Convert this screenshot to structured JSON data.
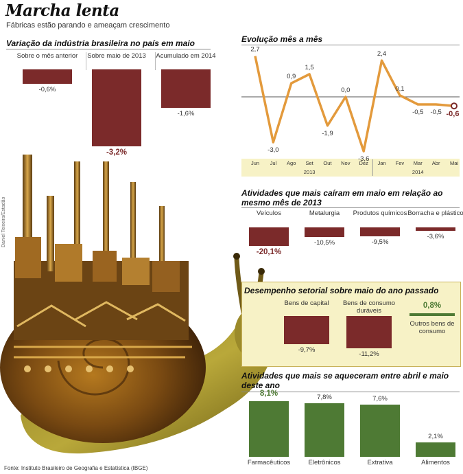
{
  "header": {
    "title": "Marcha lenta",
    "subtitle": "Fábricas estão parando e ameaçam crescimento"
  },
  "source": "Fonte: Instituto Brasileiro de Geografia e Estatística (IBGE)",
  "credit": "Daniel Teixeira/Estadão",
  "colors": {
    "maroon": "#7b2a2a",
    "green": "#4e7a34",
    "orange": "#e39a3c",
    "yellow_panel": "#f7f2c6"
  },
  "chart_data": [
    {
      "type": "bar",
      "title": "Variação da indústria brasileira no país em maio",
      "categories": [
        "Sobre o mês anterior",
        "Sobre maio de 2013",
        "Acumulado em 2014"
      ],
      "values": [
        -0.6,
        -3.2,
        -1.6
      ],
      "value_labels": [
        "-0,6%",
        "-3,2%",
        "-1,6%"
      ],
      "highlight": "Sobre maio de 2013"
    },
    {
      "type": "line",
      "title": "Evolução mês a mês",
      "x": [
        "Jun",
        "Jul",
        "Ago",
        "Set",
        "Out",
        "Nov",
        "Dez",
        "Jan",
        "Fev",
        "Mar",
        "Abr",
        "Mai"
      ],
      "values": [
        2.7,
        -3.0,
        0.9,
        1.5,
        -1.9,
        0.0,
        -3.6,
        2.4,
        0.1,
        -0.5,
        -0.5,
        -0.6
      ],
      "value_labels": [
        "2,7",
        "-3,0",
        "0,9",
        "1,5",
        "-1,9",
        "0,0",
        "-3,6",
        "2,4",
        "0,1",
        "-0,5",
        "-0,5",
        "-0,6"
      ],
      "year_labels": [
        "2013",
        "2014"
      ],
      "ylim": [
        -4,
        3
      ]
    },
    {
      "type": "bar",
      "title": "Atividades que mais caíram em maio em relação ao mesmo mês de 2013",
      "categories": [
        "Veículos",
        "Metalurgia",
        "Produtos químicos",
        "Borracha e plástico"
      ],
      "values": [
        -20.1,
        -10.5,
        -9.5,
        -3.6
      ],
      "value_labels": [
        "-20,1%",
        "-10,5%",
        "-9,5%",
        "-3,6%"
      ]
    },
    {
      "type": "bar",
      "title": "Desempenho setorial sobre maio do ano passado",
      "categories": [
        "Bens de capital",
        "Bens de consumo duráveis",
        "Outros bens de consumo"
      ],
      "values": [
        -9.7,
        -11.2,
        0.8
      ],
      "value_labels": [
        "-9,7%",
        "-11,2%",
        "0,8%"
      ]
    },
    {
      "type": "bar",
      "title": "Atividades que mais se aqueceram entre abril e maio deste ano",
      "categories": [
        "Farmacêuticos",
        "Eletrônicos",
        "Extrativa",
        "Alimentos"
      ],
      "values": [
        8.1,
        7.8,
        7.6,
        2.1
      ],
      "value_labels": [
        "8,1%",
        "7,8%",
        "7,6%",
        "2,1%"
      ]
    }
  ]
}
